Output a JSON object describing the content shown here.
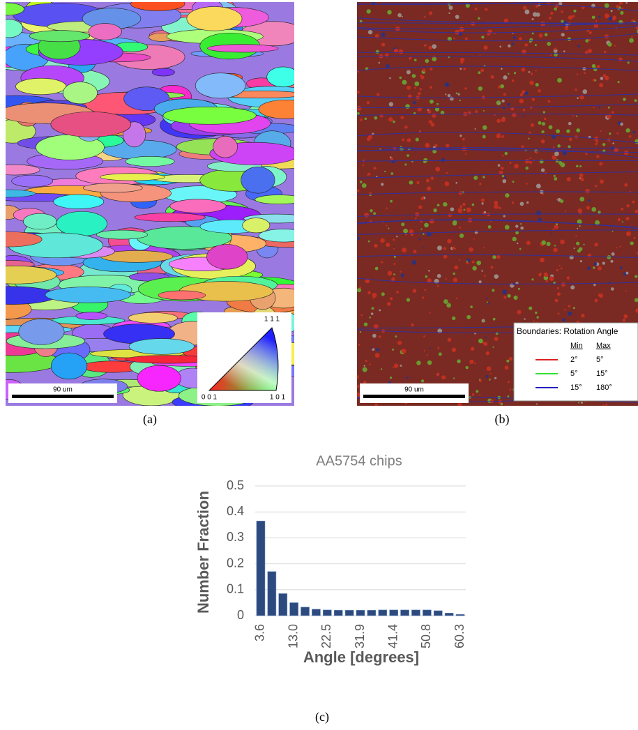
{
  "panel_a": {
    "scale_bar": "90 um",
    "key": {
      "top": "1 1 1",
      "left": "0 0 1",
      "right": "1 0 1"
    },
    "caption": "(a)"
  },
  "panel_b": {
    "scale_bar": "90 um",
    "caption": "(b)",
    "legend": {
      "title": "Boundaries: Rotation Angle",
      "min_header": "Min",
      "max_header": "Max",
      "rows": [
        {
          "min": "2°",
          "max": "5°",
          "color": "#e02020"
        },
        {
          "min": "5°",
          "max": "15°",
          "color": "#30e030"
        },
        {
          "min": "15°",
          "max": "180°",
          "color": "#2020c0"
        }
      ]
    }
  },
  "chart_data": {
    "type": "bar",
    "title": "AA5754 chips",
    "x_label": "Angle [degrees]",
    "y_label": "Number Fraction",
    "categories": [
      "3.6",
      null,
      null,
      "13.0",
      null,
      null,
      "22.5",
      null,
      null,
      "31.9",
      null,
      null,
      "41.4",
      null,
      null,
      "50.8",
      null,
      null,
      "60.3"
    ],
    "values": [
      0.365,
      0.17,
      0.085,
      0.05,
      0.033,
      0.025,
      0.022,
      0.021,
      0.021,
      0.021,
      0.021,
      0.022,
      0.022,
      0.022,
      0.022,
      0.022,
      0.019,
      0.01,
      0.005
    ],
    "color": "#2c4a7e",
    "ylim": [
      0,
      0.5
    ],
    "yticks": [
      0,
      0.1,
      0.2,
      0.3,
      0.4,
      0.5
    ],
    "grid": true
  },
  "panel_c": {
    "caption": "(c)"
  }
}
